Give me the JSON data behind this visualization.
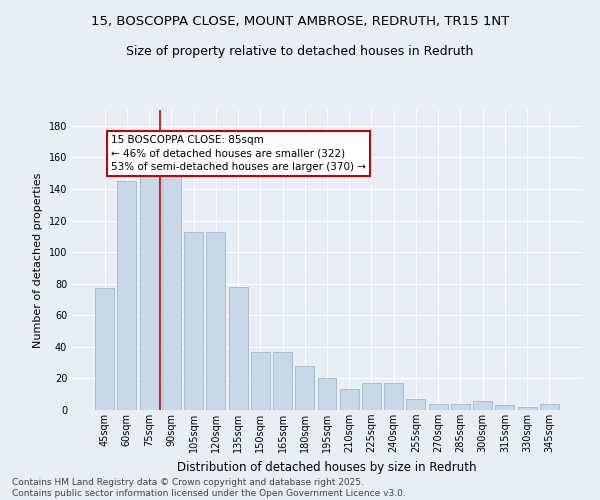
{
  "title_line1": "15, BOSCOPPA CLOSE, MOUNT AMBROSE, REDRUTH, TR15 1NT",
  "title_line2": "Size of property relative to detached houses in Redruth",
  "xlabel": "Distribution of detached houses by size in Redruth",
  "ylabel": "Number of detached properties",
  "categories": [
    "45sqm",
    "60sqm",
    "75sqm",
    "90sqm",
    "105sqm",
    "120sqm",
    "135sqm",
    "150sqm",
    "165sqm",
    "180sqm",
    "195sqm",
    "210sqm",
    "225sqm",
    "240sqm",
    "255sqm",
    "270sqm",
    "285sqm",
    "300sqm",
    "315sqm",
    "330sqm",
    "345sqm"
  ],
  "values": [
    77,
    145,
    148,
    149,
    113,
    113,
    78,
    37,
    37,
    28,
    20,
    13,
    17,
    17,
    7,
    4,
    4,
    6,
    3,
    2,
    4
  ],
  "bar_color": "#c8d8e8",
  "bar_edge_color": "#a0b8cc",
  "red_line_x": 2.5,
  "annotation_text_line1": "15 BOSCOPPA CLOSE: 85sqm",
  "annotation_text_line2": "← 46% of detached houses are smaller (322)",
  "annotation_text_line3": "53% of semi-detached houses are larger (370) →",
  "annotation_box_facecolor": "#ffffff",
  "annotation_box_edgecolor": "#cc0000",
  "ylim_max": 190,
  "yticks": [
    0,
    20,
    40,
    60,
    80,
    100,
    120,
    140,
    160,
    180
  ],
  "bg_color": "#e8eef5",
  "grid_color": "#ffffff",
  "footer_line1": "Contains HM Land Registry data © Crown copyright and database right 2025.",
  "footer_line2": "Contains public sector information licensed under the Open Government Licence v3.0.",
  "title_fontsize": 9.5,
  "subtitle_fontsize": 9,
  "xlabel_fontsize": 8.5,
  "ylabel_fontsize": 8,
  "tick_fontsize": 7,
  "footer_fontsize": 6.5,
  "annotation_fontsize": 7.5
}
